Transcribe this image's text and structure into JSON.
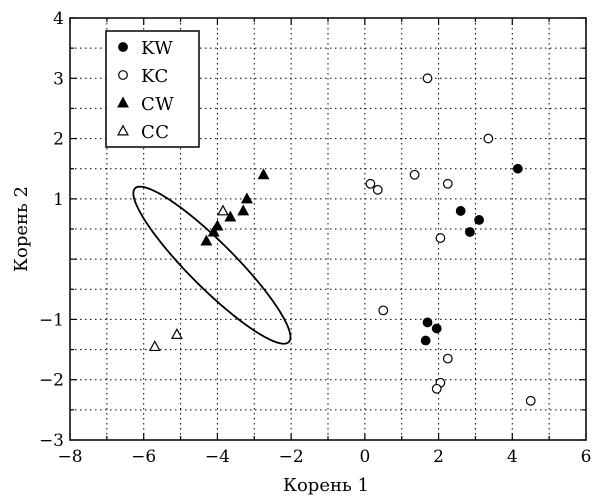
{
  "chart_data": {
    "type": "scatter",
    "xlabel": "Корень 1",
    "ylabel": "Корень 2",
    "xlim": [
      -8,
      6
    ],
    "ylim": [
      -3,
      4
    ],
    "x_ticks": [
      -8,
      -6,
      -4,
      -2,
      0,
      2,
      4,
      6
    ],
    "y_ticks": [
      -3,
      -2,
      -1,
      1,
      2,
      3,
      4
    ],
    "x_tick_labels": [
      "−8",
      "−6",
      "−4",
      "−2",
      "0",
      "2",
      "4",
      "6"
    ],
    "y_tick_labels": [
      "−3",
      "−2",
      "−1",
      "1",
      "2",
      "3",
      "4"
    ],
    "grid": "dotted",
    "legend_position": "top-left",
    "series": [
      {
        "name": "KW",
        "marker": "filled-circle",
        "points": [
          {
            "x": 4.15,
            "y": 1.5
          },
          {
            "x": 2.6,
            "y": 0.8
          },
          {
            "x": 3.1,
            "y": 0.65
          },
          {
            "x": 2.85,
            "y": 0.45
          },
          {
            "x": 1.7,
            "y": -1.05
          },
          {
            "x": 1.95,
            "y": -1.15
          },
          {
            "x": 1.65,
            "y": -1.35
          }
        ]
      },
      {
        "name": "KC",
        "marker": "open-circle",
        "points": [
          {
            "x": 1.7,
            "y": 3.0
          },
          {
            "x": 3.35,
            "y": 2.0
          },
          {
            "x": 1.35,
            "y": 1.4
          },
          {
            "x": 0.15,
            "y": 1.25
          },
          {
            "x": 0.35,
            "y": 1.15
          },
          {
            "x": 2.25,
            "y": 1.25
          },
          {
            "x": 2.05,
            "y": 0.35
          },
          {
            "x": 0.5,
            "y": -0.85
          },
          {
            "x": 2.25,
            "y": -1.65
          },
          {
            "x": 2.05,
            "y": -2.05
          },
          {
            "x": 1.95,
            "y": -2.15
          },
          {
            "x": 4.5,
            "y": -2.35
          }
        ]
      },
      {
        "name": "CW",
        "marker": "filled-triangle",
        "points": [
          {
            "x": -2.75,
            "y": 1.4
          },
          {
            "x": -3.2,
            "y": 1.0
          },
          {
            "x": -3.3,
            "y": 0.8
          },
          {
            "x": -3.65,
            "y": 0.7
          },
          {
            "x": -4.0,
            "y": 0.55
          },
          {
            "x": -4.1,
            "y": 0.45
          },
          {
            "x": -4.3,
            "y": 0.3
          }
        ]
      },
      {
        "name": "CC",
        "marker": "open-triangle",
        "points": [
          {
            "x": -3.85,
            "y": 0.8
          },
          {
            "x": -5.1,
            "y": -1.25
          },
          {
            "x": -5.7,
            "y": -1.45
          }
        ]
      }
    ],
    "annotations": [
      {
        "type": "ellipse",
        "cx": -4.15,
        "cy": -0.1,
        "rx": 2.95,
        "ry": 0.62,
        "angle_deg": -45
      }
    ]
  },
  "colors": {
    "marker": "#000000",
    "axis": "#000000",
    "grid": "#000000",
    "background": "#ffffff"
  }
}
